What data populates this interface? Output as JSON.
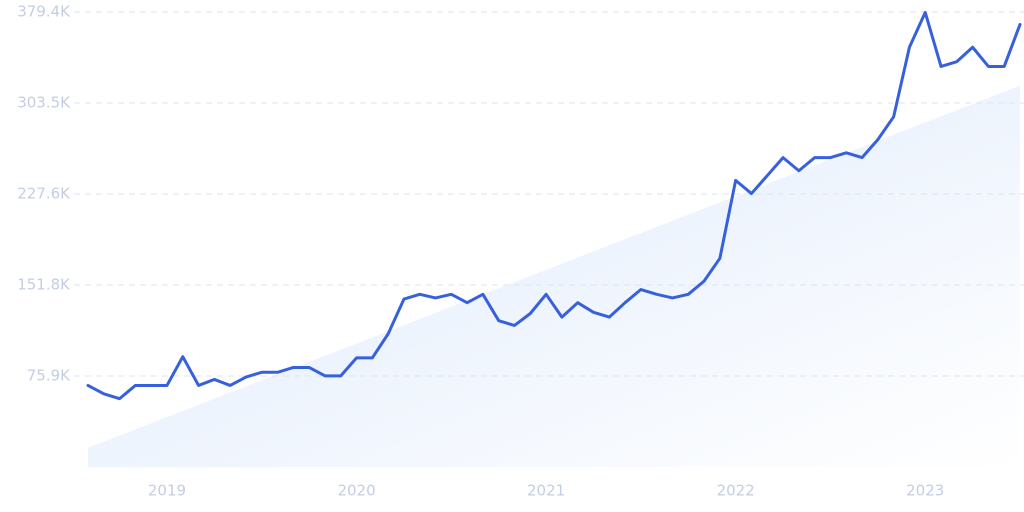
{
  "chart_data": {
    "type": "line",
    "categories": [
      null,
      null,
      null,
      null,
      null,
      "2019",
      null,
      null,
      null,
      null,
      null,
      null,
      null,
      null,
      null,
      null,
      null,
      "2020",
      null,
      null,
      null,
      null,
      null,
      null,
      null,
      null,
      null,
      null,
      null,
      "2021",
      null,
      null,
      null,
      null,
      null,
      null,
      null,
      null,
      null,
      null,
      null,
      "2022",
      null,
      null,
      null,
      null,
      null,
      null,
      null,
      null,
      null,
      null,
      null,
      "2023",
      null,
      null,
      null,
      null,
      null,
      null
    ],
    "series": [
      {
        "color": "#3761dc",
        "values": [
          68000,
          61000,
          57000,
          68000,
          68000,
          68000,
          92000,
          68000,
          73000,
          68000,
          75000,
          79000,
          79000,
          83000,
          83000,
          76000,
          76000,
          91000,
          91000,
          111000,
          140000,
          144000,
          141000,
          144000,
          137000,
          144000,
          122000,
          118000,
          128000,
          144000,
          125000,
          137000,
          129000,
          125000,
          137000,
          148000,
          144000,
          141000,
          144000,
          155000,
          174000,
          239000,
          228000,
          243000,
          258000,
          247000,
          258000,
          258000,
          262000,
          258000,
          273000,
          292000,
          350000,
          379000,
          334000,
          338000,
          350000,
          334000,
          334000,
          369000
        ]
      }
    ],
    "trend": {
      "color": "#e3eefc",
      "values": [
        16000,
        318000
      ]
    },
    "ylim": [
      0,
      379400
    ],
    "yticks": [
      {
        "value": 75900,
        "label": "75.9K"
      },
      {
        "value": 151800,
        "label": "151.8K"
      },
      {
        "value": 227600,
        "label": "227.6K"
      },
      {
        "value": 303500,
        "label": "303.5K"
      },
      {
        "value": 379400,
        "label": "379.4K"
      }
    ],
    "grid": true
  }
}
